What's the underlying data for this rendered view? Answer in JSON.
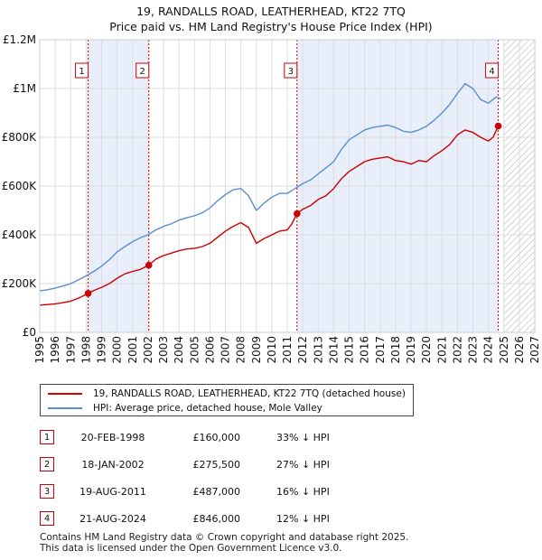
{
  "title_line1": "19, RANDALLS ROAD, LEATHERHEAD, KT22 7TQ",
  "title_line2": "Price paid vs. HM Land Registry's House Price Index (HPI)",
  "colors": {
    "price": "#cc0000",
    "hpi": "#5b8fd0",
    "band": "#e8eefa",
    "grid": "#dddddd",
    "marker": "#cc0000"
  },
  "chart_data": {
    "type": "line",
    "title": "19, RANDALLS ROAD, LEATHERHEAD, KT22 7TQ — Price paid vs. HM Land Registry's House Price Index (HPI)",
    "xlabel": "",
    "ylabel": "",
    "xlim": [
      1995,
      2027
    ],
    "ylim": [
      0,
      1200000
    ],
    "y_ticks": [
      0,
      200000,
      400000,
      600000,
      800000,
      1000000,
      1200000
    ],
    "y_tick_labels": [
      "£0",
      "£200K",
      "£400K",
      "£600K",
      "£800K",
      "£1M",
      "£1.2M"
    ],
    "x_ticks": [
      1995,
      1996,
      1997,
      1998,
      1999,
      2000,
      2001,
      2002,
      2003,
      2004,
      2005,
      2006,
      2007,
      2008,
      2009,
      2010,
      2011,
      2012,
      2013,
      2014,
      2015,
      2016,
      2017,
      2018,
      2019,
      2020,
      2021,
      2022,
      2023,
      2024,
      2025,
      2026,
      2027
    ],
    "x_tick_labels": [
      "1995",
      "1996",
      "1997",
      "1998",
      "1999",
      "2000",
      "2001",
      "2002",
      "2003",
      "2004",
      "2005",
      "2006",
      "2007",
      "2008",
      "2009",
      "2010",
      "2011",
      "2012",
      "2013",
      "2014",
      "2015",
      "2016",
      "2017",
      "2018",
      "2019",
      "2020",
      "2021",
      "2022",
      "2023",
      "2024",
      "2025",
      "2026",
      "2027"
    ],
    "future_hatch_start": 2025.0,
    "series": [
      {
        "name": "19, RANDALLS ROAD, LEATHERHEAD, KT22 7TQ (detached house)",
        "color": "#cc0000",
        "x": [
          1995.0,
          1995.5,
          1996.0,
          1996.5,
          1997.0,
          1997.5,
          1998.13,
          1998.5,
          1999.0,
          1999.5,
          2000.0,
          2000.5,
          2001.0,
          2001.5,
          2002.05,
          2002.5,
          2003.0,
          2003.5,
          2004.0,
          2004.5,
          2005.0,
          2005.5,
          2006.0,
          2006.5,
          2007.0,
          2007.5,
          2008.0,
          2008.5,
          2009.0,
          2009.5,
          2010.0,
          2010.5,
          2011.0,
          2011.3,
          2011.63,
          2012.0,
          2012.5,
          2013.0,
          2013.5,
          2014.0,
          2014.5,
          2015.0,
          2015.5,
          2016.0,
          2016.5,
          2017.0,
          2017.5,
          2018.0,
          2018.5,
          2019.0,
          2019.5,
          2020.0,
          2020.5,
          2021.0,
          2021.5,
          2022.0,
          2022.5,
          2023.0,
          2023.5,
          2024.0,
          2024.3,
          2024.64
        ],
        "y": [
          112000,
          114000,
          117000,
          122000,
          128000,
          140000,
          160000,
          172000,
          185000,
          200000,
          222000,
          240000,
          250000,
          258000,
          275500,
          300000,
          315000,
          325000,
          335000,
          342000,
          345000,
          352000,
          365000,
          390000,
          415000,
          435000,
          450000,
          430000,
          365000,
          385000,
          400000,
          415000,
          420000,
          445000,
          487000,
          505000,
          520000,
          545000,
          560000,
          590000,
          630000,
          660000,
          680000,
          700000,
          710000,
          715000,
          720000,
          705000,
          700000,
          690000,
          705000,
          700000,
          725000,
          745000,
          770000,
          810000,
          830000,
          820000,
          800000,
          785000,
          800000,
          846000
        ]
      },
      {
        "name": "HPI: Average price, detached house, Mole Valley",
        "color": "#5b8fd0",
        "x": [
          1995.0,
          1995.5,
          1996.0,
          1996.5,
          1997.0,
          1997.5,
          1998.0,
          1998.5,
          1999.0,
          1999.5,
          2000.0,
          2000.5,
          2001.0,
          2001.5,
          2002.0,
          2002.5,
          2003.0,
          2003.5,
          2004.0,
          2004.5,
          2005.0,
          2005.5,
          2006.0,
          2006.5,
          2007.0,
          2007.5,
          2008.0,
          2008.5,
          2009.0,
          2009.5,
          2010.0,
          2010.5,
          2011.0,
          2011.5,
          2012.0,
          2012.5,
          2013.0,
          2013.5,
          2014.0,
          2014.5,
          2015.0,
          2015.5,
          2016.0,
          2016.5,
          2017.0,
          2017.5,
          2018.0,
          2018.5,
          2019.0,
          2019.5,
          2020.0,
          2020.5,
          2021.0,
          2021.5,
          2022.0,
          2022.5,
          2023.0,
          2023.5,
          2024.0,
          2024.5,
          2024.8
        ],
        "y": [
          170000,
          175000,
          182000,
          190000,
          200000,
          215000,
          232000,
          250000,
          272000,
          298000,
          330000,
          352000,
          372000,
          388000,
          400000,
          420000,
          435000,
          445000,
          460000,
          470000,
          478000,
          490000,
          510000,
          540000,
          565000,
          585000,
          590000,
          560000,
          500000,
          530000,
          555000,
          570000,
          570000,
          590000,
          610000,
          625000,
          650000,
          675000,
          700000,
          750000,
          790000,
          810000,
          830000,
          840000,
          845000,
          850000,
          840000,
          825000,
          820000,
          830000,
          845000,
          870000,
          900000,
          935000,
          980000,
          1020000,
          1000000,
          955000,
          940000,
          965000,
          958000
        ]
      }
    ],
    "sales": [
      {
        "n": "1",
        "x": 1998.13,
        "y": 160000,
        "date": "20-FEB-1998",
        "price": "£160,000",
        "hpi": "33% ↓ HPI"
      },
      {
        "n": "2",
        "x": 2002.05,
        "y": 275500,
        "date": "18-JAN-2002",
        "price": "£275,500",
        "hpi": "27% ↓ HPI"
      },
      {
        "n": "3",
        "x": 2011.63,
        "y": 487000,
        "date": "19-AUG-2011",
        "price": "£487,000",
        "hpi": "16% ↓ HPI"
      },
      {
        "n": "4",
        "x": 2024.64,
        "y": 846000,
        "date": "21-AUG-2024",
        "price": "£846,000",
        "hpi": "12% ↓ HPI"
      }
    ],
    "bands": [
      [
        1998.13,
        2002.05
      ],
      [
        2011.63,
        2024.64
      ]
    ]
  },
  "legend": {
    "price_label": "19, RANDALLS ROAD, LEATHERHEAD, KT22 7TQ (detached house)",
    "hpi_label": "HPI: Average price, detached house, Mole Valley"
  },
  "footer_line1": "Contains HM Land Registry data © Crown copyright and database right 2025.",
  "footer_line2": "This data is licensed under the Open Government Licence v3.0."
}
